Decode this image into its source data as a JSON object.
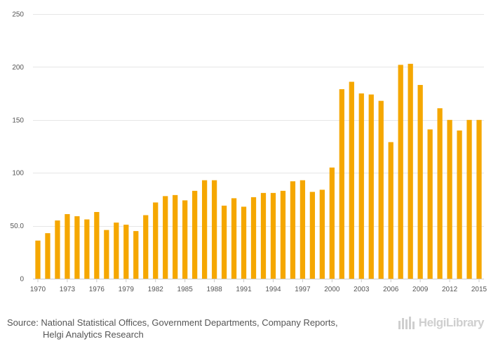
{
  "chart_data": {
    "type": "bar",
    "title": "",
    "xlabel": "",
    "ylabel": "",
    "ylim": [
      0,
      250
    ],
    "yticks": [
      0,
      50,
      100,
      150,
      200,
      250
    ],
    "ytick_labels": [
      "0",
      "50.0",
      "100",
      "150",
      "200",
      "250"
    ],
    "bar_color": "#f5a700",
    "categories": [
      "1970",
      "1971",
      "1972",
      "1973",
      "1974",
      "1975",
      "1976",
      "1977",
      "1978",
      "1979",
      "1980",
      "1981",
      "1982",
      "1983",
      "1984",
      "1985",
      "1986",
      "1987",
      "1988",
      "1989",
      "1990",
      "1991",
      "1992",
      "1993",
      "1994",
      "1995",
      "1996",
      "1997",
      "1998",
      "1999",
      "2000",
      "2001",
      "2002",
      "2003",
      "2004",
      "2005",
      "2006",
      "2007",
      "2008",
      "2009",
      "2010",
      "2011",
      "2012",
      "2013",
      "2014",
      "2015"
    ],
    "values": [
      36,
      43,
      55,
      61,
      59,
      56,
      63,
      46,
      53,
      51,
      45,
      60,
      72,
      78,
      79,
      74,
      83,
      93,
      93,
      69,
      76,
      68,
      77,
      81,
      81,
      83,
      92,
      93,
      82,
      84,
      105,
      179,
      186,
      175,
      174,
      168,
      129,
      202,
      203,
      183,
      141,
      161,
      150,
      140,
      150,
      150
    ],
    "xtick_labels": [
      "1970",
      "1973",
      "1976",
      "1979",
      "1982",
      "1985",
      "1988",
      "1991",
      "1994",
      "1997",
      "2000",
      "2003",
      "2006",
      "2009",
      "2012",
      "2015"
    ]
  },
  "footer": {
    "source_line1": "Source: National Statistical Offices, Government Departments, Company Reports,",
    "source_line2": "Helgi Analytics Research"
  },
  "logo": {
    "text": "HelgiLibrary",
    "icon": "helgi-logo-icon"
  }
}
